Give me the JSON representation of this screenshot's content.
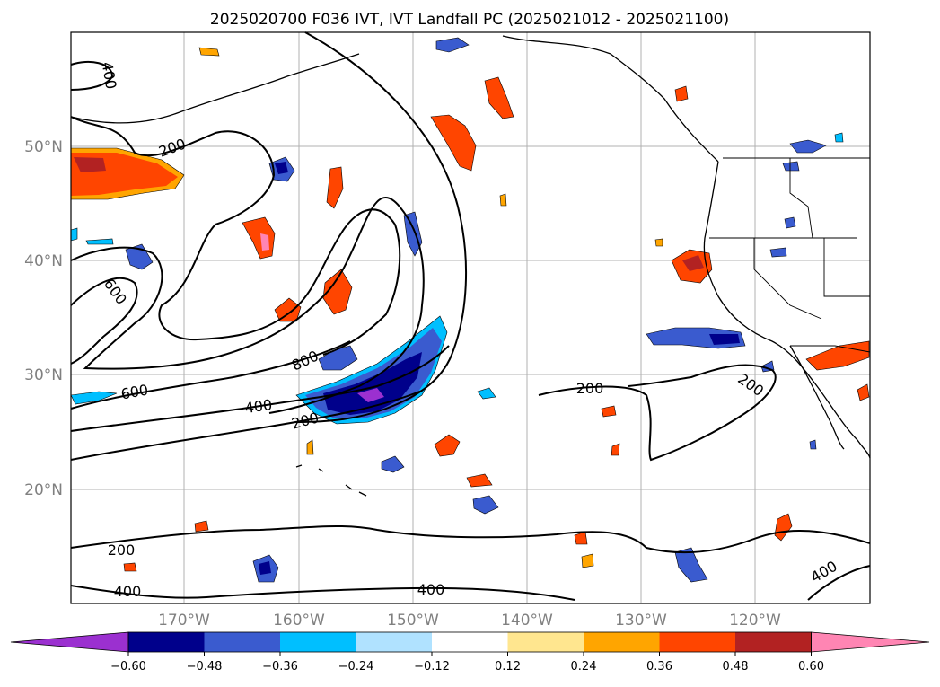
{
  "map": {
    "title": "2025020700 F036 IVT, IVT Landfall PC (2025021012 - 2025021100)",
    "lon_labels": [
      "170°W",
      "160°W",
      "150°W",
      "140°W",
      "130°W",
      "120°W"
    ],
    "lat_labels": [
      "50°N",
      "40°N",
      "30°N",
      "20°N"
    ],
    "contour_labels": [
      "400",
      "200",
      "600",
      "800",
      "600",
      "400",
      "200",
      "200",
      "200",
      "200",
      "400",
      "400",
      "400"
    ],
    "colorbar": {
      "ticks": [
        "−0.60",
        "−0.48",
        "−0.36",
        "−0.24",
        "−0.12",
        "0.12",
        "0.24",
        "0.36",
        "0.48",
        "0.60"
      ],
      "colors": [
        "#9b30d0",
        "#00008b",
        "#3a5bcf",
        "#00bfff",
        "#b0e2ff",
        "#ffffff",
        "#ffe68f",
        "#ffa500",
        "#ff4500",
        "#b22222",
        "#ff85b3"
      ]
    },
    "palette": {
      "blue_dark": "#00008b",
      "blue_mid": "#3a5bcf",
      "blue_light": "#00bfff",
      "purple": "#9b30d0",
      "orange": "#ffa500",
      "orange_red": "#ff4500",
      "dark_red": "#b22222",
      "pink": "#ff85b3",
      "yellow": "#ffe68f"
    }
  }
}
